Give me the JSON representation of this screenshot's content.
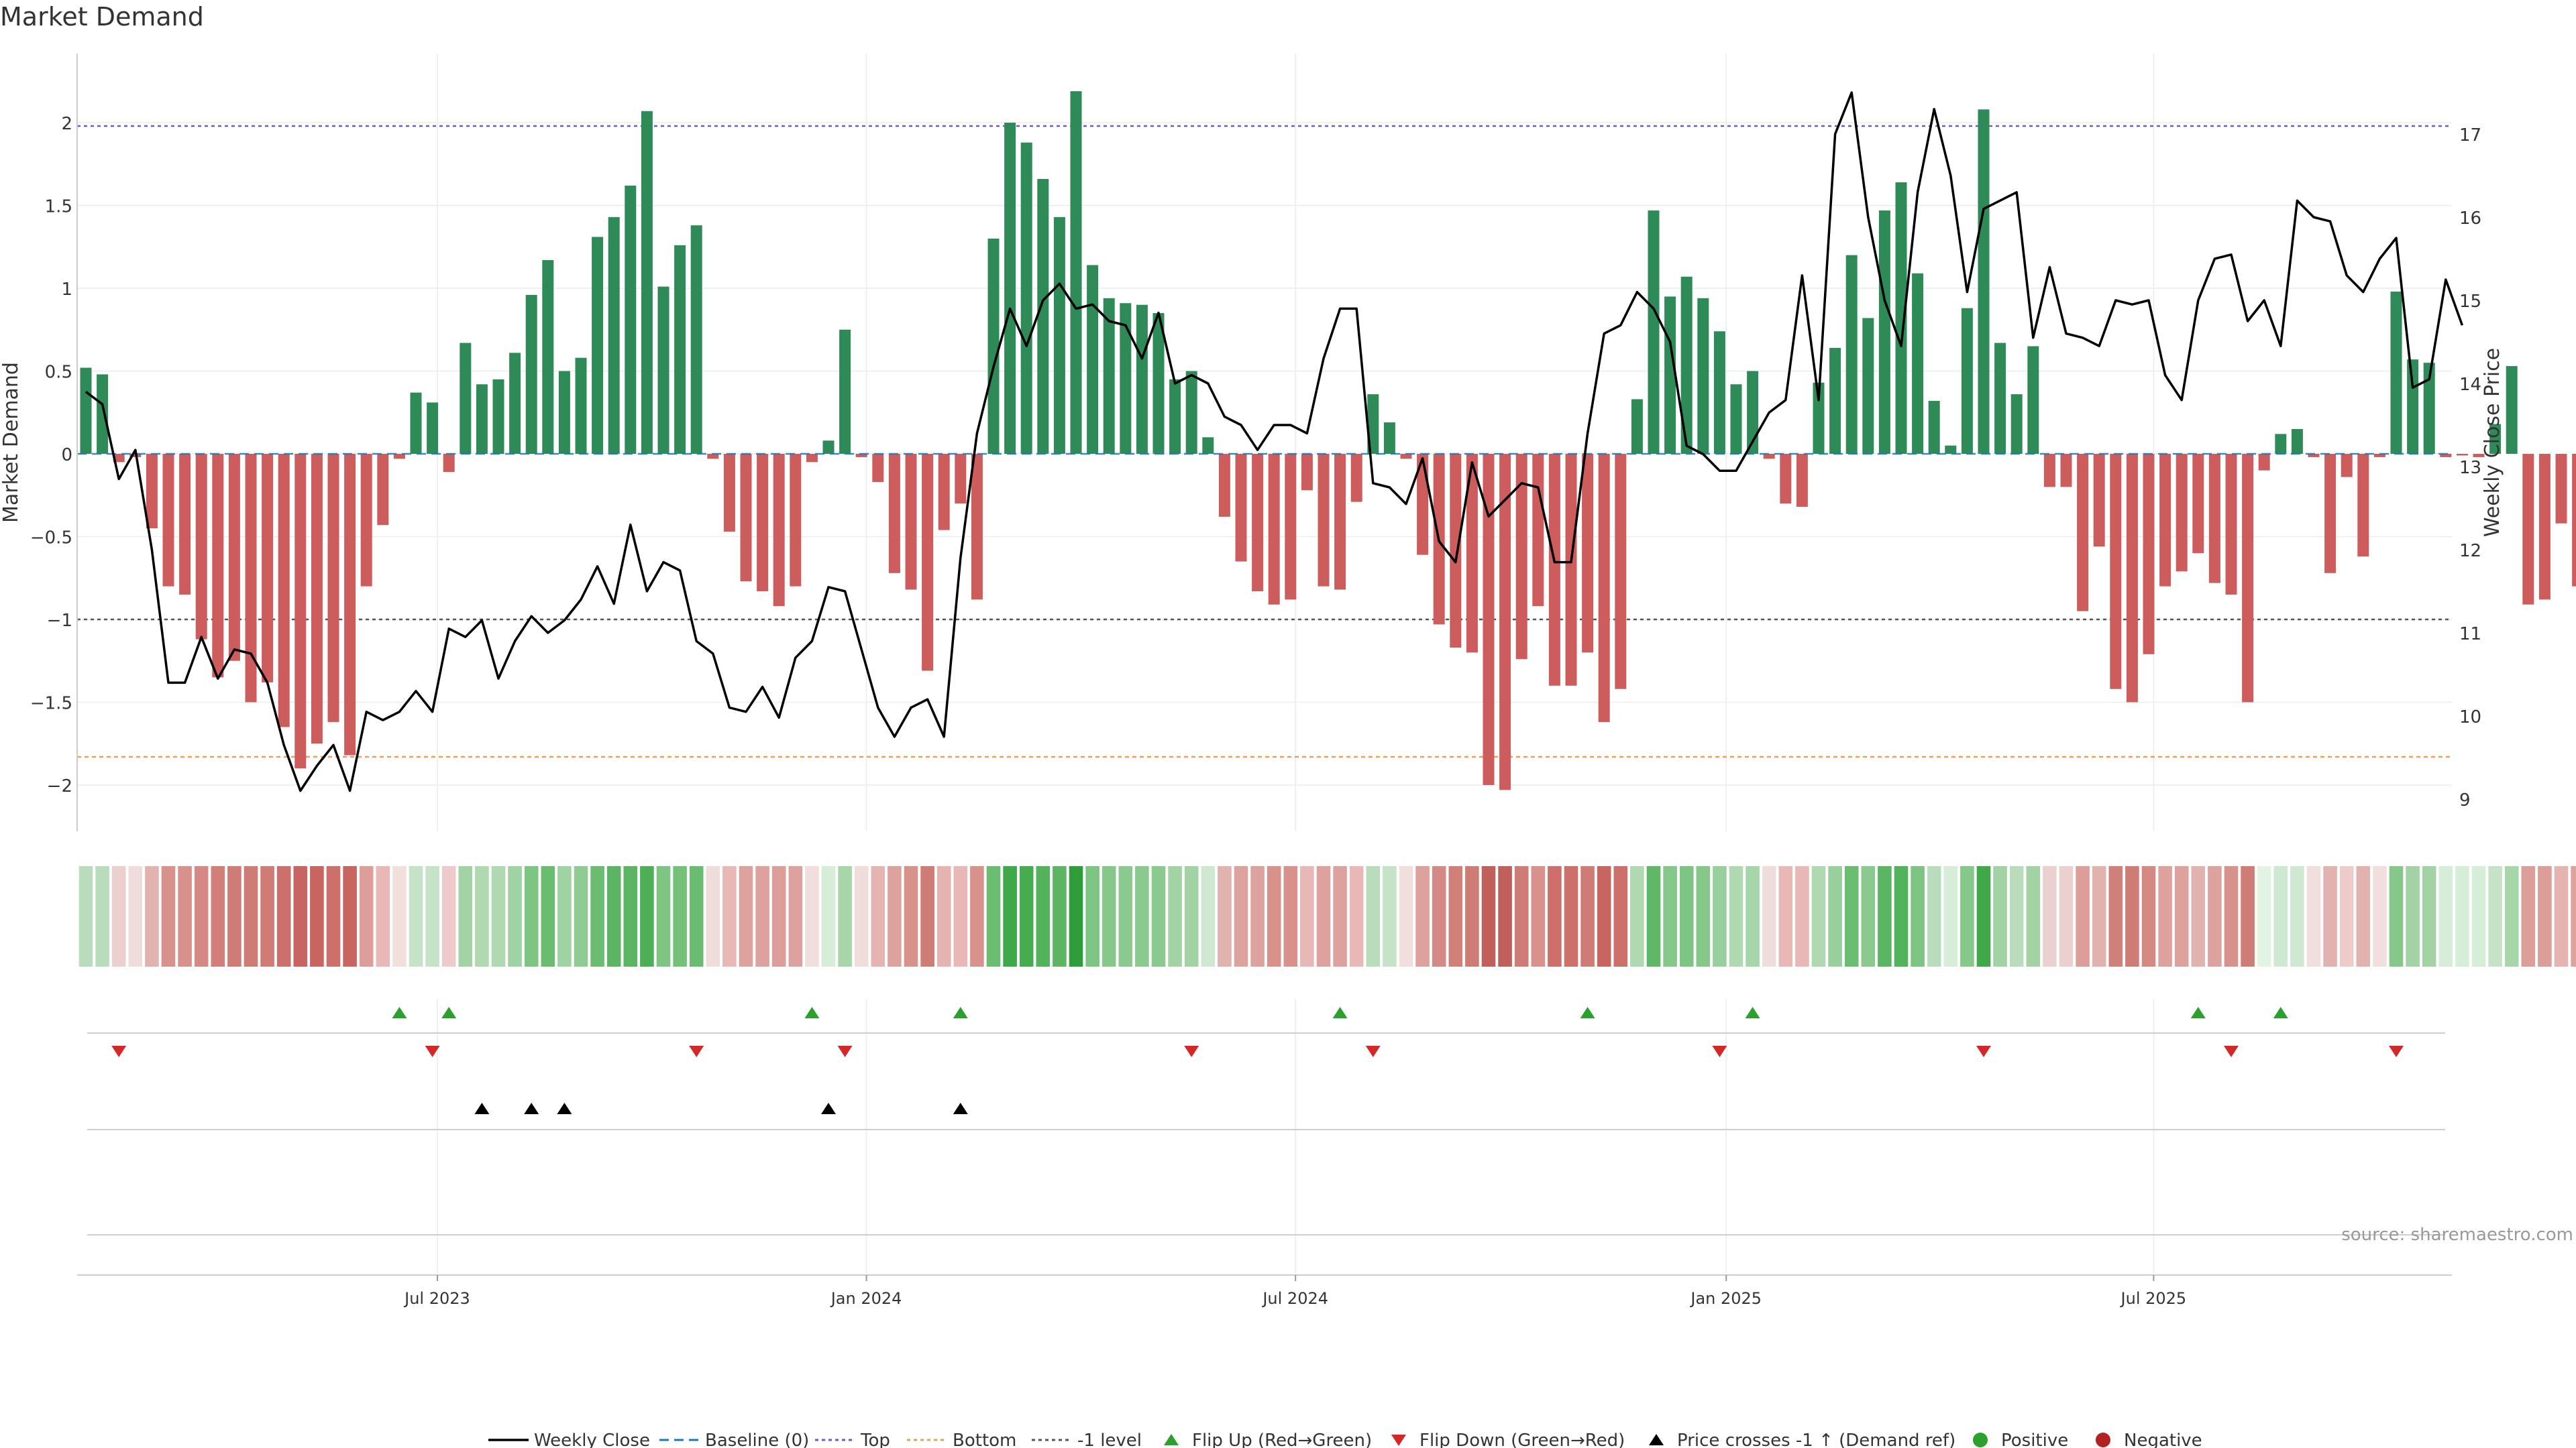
{
  "chart_data": {
    "type": "bar",
    "title": "Market Demand",
    "source": "source: sharemaestro.com",
    "ylabel_left": "Market Demand",
    "ylabel_right": "Weekly Close Price",
    "ylim_left": [
      -2.25,
      2.45
    ],
    "ylim_right": [
      8.8,
      17.8
    ],
    "left_ticks": [
      {
        "v": 2,
        "label": "2"
      },
      {
        "v": 1.5,
        "label": "1.5"
      },
      {
        "v": 1,
        "label": "1"
      },
      {
        "v": 0.5,
        "label": "0.5"
      },
      {
        "v": 0,
        "label": "0"
      },
      {
        "v": -0.5,
        "label": "−0.5"
      },
      {
        "v": -1,
        "label": "−1"
      },
      {
        "v": -1.5,
        "label": "−1.5"
      },
      {
        "v": -2,
        "label": "−2"
      }
    ],
    "right_ticks": [
      {
        "v": 17,
        "label": "17"
      },
      {
        "v": 16,
        "label": "16"
      },
      {
        "v": 15,
        "label": "15"
      },
      {
        "v": 14,
        "label": "14"
      },
      {
        "v": 13,
        "label": "13"
      },
      {
        "v": 12,
        "label": "12"
      },
      {
        "v": 11,
        "label": "11"
      },
      {
        "v": 10,
        "label": "10"
      },
      {
        "v": 9,
        "label": "9"
      }
    ],
    "x_tick_labels": [
      {
        "index": 21.3,
        "label": "Jul 2023"
      },
      {
        "index": 47.3,
        "label": "Jan 2024"
      },
      {
        "index": 73.3,
        "label": "Jul 2024"
      },
      {
        "index": 99.4,
        "label": "Jan 2025"
      },
      {
        "index": 125.3,
        "label": "Jul 2025"
      }
    ],
    "reference_lines": {
      "top": 1.98,
      "bottom": -1.83,
      "minus_one": -1.0,
      "baseline": 0
    },
    "demand": [
      0.52,
      0.48,
      -0.05,
      -0.02,
      -0.45,
      -0.8,
      -0.85,
      -1.12,
      -1.35,
      -1.25,
      -1.5,
      -1.38,
      -1.65,
      -1.9,
      -1.75,
      -1.62,
      -1.82,
      -0.8,
      -0.43,
      -0.03,
      0.37,
      0.31,
      -0.11,
      0.67,
      0.42,
      0.45,
      0.61,
      0.96,
      1.17,
      0.5,
      0.58,
      1.31,
      1.43,
      1.62,
      2.07,
      1.01,
      1.26,
      1.38,
      -0.03,
      -0.47,
      -0.77,
      -0.83,
      -0.92,
      -0.8,
      -0.05,
      0.08,
      0.75,
      -0.02,
      -0.17,
      -0.72,
      -0.82,
      -1.31,
      -0.46,
      -0.3,
      -0.88,
      1.3,
      2.0,
      1.88,
      1.66,
      1.43,
      2.19,
      1.14,
      0.94,
      0.91,
      0.9,
      0.85,
      0.45,
      0.5,
      0.1,
      -0.38,
      -0.65,
      -0.83,
      -0.91,
      -0.88,
      -0.22,
      -0.8,
      -0.82,
      -0.29,
      0.36,
      0.19,
      -0.03,
      -0.61,
      -1.03,
      -1.17,
      -1.2,
      -2.0,
      -2.03,
      -1.24,
      -0.92,
      -1.4,
      -1.4,
      -1.2,
      -1.62,
      -1.42,
      0.33,
      1.47,
      0.95,
      1.07,
      0.94,
      0.74,
      0.42,
      0.5,
      -0.03,
      -0.3,
      -0.32,
      0.43,
      0.64,
      1.2,
      0.82,
      1.47,
      1.64,
      1.09,
      0.32,
      0.05,
      0.88,
      2.08,
      0.67,
      0.36,
      0.65,
      -0.2,
      -0.2,
      -0.95,
      -0.56,
      -1.42,
      -1.5,
      -1.21,
      -0.8,
      -0.71,
      -0.6,
      -0.78,
      -0.85,
      -1.5,
      -0.1,
      0.12,
      0.15,
      -0.02,
      -0.72,
      -0.14,
      -0.62,
      -0.02,
      0.98,
      0.57,
      0.55,
      -0.02,
      -0.01,
      -0.02,
      0.18,
      0.53,
      -0.91,
      -0.88,
      -0.42,
      -0.8
    ],
    "weekly_close": [
      13.9,
      13.75,
      12.85,
      13.2,
      12.0,
      10.4,
      10.4,
      10.95,
      10.45,
      10.8,
      10.75,
      10.4,
      9.65,
      9.1,
      9.4,
      9.65,
      9.1,
      10.05,
      9.95,
      10.05,
      10.3,
      10.05,
      11.05,
      10.95,
      11.15,
      10.45,
      10.9,
      11.2,
      11.0,
      11.15,
      11.4,
      11.8,
      11.35,
      12.3,
      11.5,
      11.85,
      11.75,
      10.9,
      10.75,
      10.1,
      10.05,
      10.35,
      9.98,
      10.7,
      10.9,
      11.55,
      11.5,
      10.8,
      10.1,
      9.75,
      10.1,
      10.2,
      9.75,
      11.9,
      13.4,
      14.2,
      14.9,
      14.45,
      15.0,
      15.2,
      14.9,
      14.95,
      14.75,
      14.7,
      14.3,
      14.85,
      14.0,
      14.1,
      14.0,
      13.6,
      13.5,
      13.2,
      13.5,
      13.5,
      13.4,
      14.3,
      14.9,
      14.9,
      12.8,
      12.75,
      12.55,
      13.1,
      12.1,
      11.85,
      13.05,
      12.4,
      12.6,
      12.8,
      12.75,
      11.85,
      11.85,
      13.4,
      14.6,
      14.7,
      15.1,
      14.9,
      14.5,
      13.25,
      13.15,
      12.95,
      12.95,
      13.3,
      13.65,
      13.8,
      15.3,
      13.8,
      17.0,
      17.5,
      16.0,
      15.0,
      14.45,
      16.3,
      17.3,
      16.5,
      15.1,
      16.1,
      16.2,
      16.3,
      14.55,
      15.4,
      14.6,
      14.55,
      14.45,
      15.0,
      14.95,
      15.0,
      14.1,
      13.8,
      15.0,
      15.5,
      15.55,
      14.75,
      15.0,
      14.45,
      16.2,
      16.0,
      15.95,
      15.3,
      15.1,
      15.5,
      15.75,
      13.95,
      14.05,
      15.25,
      14.7
    ],
    "heat_colors": [
      "#b9ddbc",
      "#b9ddbc",
      "#ebd0cf",
      "#eedddb",
      "#e2b2af",
      "#d9918c",
      "#d9918c",
      "#d48985",
      "#d17f79",
      "#cf7b76",
      "#cf7b76",
      "#cf7b76",
      "#cd706b",
      "#c96560",
      "#c96560",
      "#cd706b",
      "#c96560",
      "#dd9e9a",
      "#e7b8b5",
      "#f1dfdd",
      "#c6e3c8",
      "#c6e3c8",
      "#eccbca",
      "#a3d3a5",
      "#b0d9b2",
      "#b0d9b2",
      "#a0d3a3",
      "#7ec483",
      "#69bc70",
      "#a0d3a3",
      "#8fcb93",
      "#69bc70",
      "#5cb563",
      "#5cb563",
      "#4dae55",
      "#7ec483",
      "#75c17a",
      "#69bc70",
      "#eedddb",
      "#e7b8b5",
      "#dea29e",
      "#dea29e",
      "#dd9e9a",
      "#dea29e",
      "#f1dfdd",
      "#d6eed7",
      "#a8d6ab",
      "#eedddb",
      "#e5b3b0",
      "#dda29e",
      "#d9918c",
      "#cf7b76",
      "#e5b3b0",
      "#e7b8b5",
      "#d9918c",
      "#6bbd72",
      "#3fa848",
      "#47ac50",
      "#55b25c",
      "#5cb563",
      "#2f9e3a",
      "#7ec483",
      "#86c78a",
      "#8bca8f",
      "#8bca8f",
      "#8bca8f",
      "#a3d3a5",
      "#a3d3a5",
      "#cfe8d1",
      "#e2b2af",
      "#dea29e",
      "#dea29e",
      "#d9918c",
      "#d9918c",
      "#e7b8b5",
      "#dda29e",
      "#dda29e",
      "#e7b8b5",
      "#b9ddbc",
      "#c6e3c8",
      "#f1dfdd",
      "#dda29e",
      "#d48985",
      "#d17f79",
      "#cf7b76",
      "#c0605b",
      "#c0605b",
      "#cf7b76",
      "#d9918c",
      "#cd706b",
      "#cd706b",
      "#cf7b76",
      "#c96560",
      "#cd706b",
      "#b0d9b2",
      "#5fb866",
      "#86c78a",
      "#7ec483",
      "#86c78a",
      "#99cf9c",
      "#b0d9b2",
      "#a8d6ab",
      "#eedddb",
      "#e7b8b5",
      "#e7b8b5",
      "#b0d9b2",
      "#99cf9c",
      "#6bbd72",
      "#8bca8f",
      "#5cb563",
      "#55b25c",
      "#7ec483",
      "#b9ddbc",
      "#d6eed7",
      "#86c78a",
      "#3fa848",
      "#a3d3a5",
      "#b9ddbc",
      "#a3d3a5",
      "#ebd0cf",
      "#ebd0cf",
      "#dd9e9a",
      "#e2b2af",
      "#d17f79",
      "#cf7b76",
      "#d48985",
      "#dea29e",
      "#dea29e",
      "#e2b2af",
      "#dea29e",
      "#d9918c",
      "#cf7b76",
      "#e2f2e3",
      "#cfe8d1",
      "#cfe8d1",
      "#f1dfdd",
      "#e2b2af",
      "#eccbca",
      "#e2b2af",
      "#f1dfdd",
      "#86c78a",
      "#a3d3a5",
      "#a3d3a5",
      "#d6eed7",
      "#d6eed7",
      "#d6eed7",
      "#c6e3c8",
      "#a8d6ab",
      "#dd9e9a",
      "#dd9e9a",
      "#e5b3b0",
      "#dea29e"
    ],
    "flip_up": [
      19,
      22,
      44,
      53,
      76,
      91,
      101,
      128,
      133
    ],
    "flip_down": [
      2,
      21,
      37,
      46,
      67,
      78,
      99,
      115,
      130,
      140
    ],
    "price_crosses": [
      24,
      27,
      29,
      45,
      53
    ],
    "legend": [
      {
        "key": "weekly_close",
        "label": "Weekly Close"
      },
      {
        "key": "baseline",
        "label": "Baseline (0)"
      },
      {
        "key": "top",
        "label": "Top"
      },
      {
        "key": "bottom",
        "label": "Bottom"
      },
      {
        "key": "minus_one",
        "label": "-1 level"
      },
      {
        "key": "flip_up",
        "label": "Flip Up (Red→Green)"
      },
      {
        "key": "flip_down",
        "label": "Flip Down (Green→Red)"
      },
      {
        "key": "price_cross",
        "label": "Price crosses -1 ↑ (Demand ref)"
      },
      {
        "key": "positive",
        "label": "Positive"
      },
      {
        "key": "negative",
        "label": "Negative"
      }
    ],
    "colors": {
      "positive": "#2e8b57",
      "negative": "#cd5c5c",
      "line": "#000000",
      "top": "#6a5acd",
      "bottom": "#e8a05a",
      "minus_one": "#555555",
      "baseline": "#1f77b4",
      "flip_up": "#2ca02c",
      "flip_down": "#d62728",
      "cross": "#000000",
      "legend_positive": "#2ca02c",
      "legend_negative": "#b22222",
      "grid": "#ececec",
      "axis": "#cccccc",
      "text": "#333333",
      "source": "#999999"
    }
  }
}
